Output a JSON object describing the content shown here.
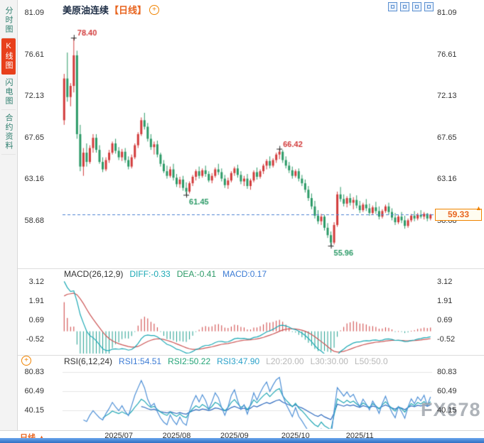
{
  "sidebar": {
    "items": [
      {
        "label": "分时图",
        "active": false
      },
      {
        "label": "K线图",
        "active": true
      },
      {
        "label": "闪电图",
        "active": false
      },
      {
        "label": "合约资料",
        "active": false
      }
    ]
  },
  "header": {
    "title": "美原油连续",
    "period_tag": "【日线】"
  },
  "icons": {
    "plus_glyph": "+",
    "up_arrow_glyph": "▲"
  },
  "toolbar": {
    "icons": [
      "crosshair-tool-icon",
      "draw-tool-icon",
      "indicator-tool-icon",
      "popout-tool-icon"
    ]
  },
  "main_chart": {
    "current_price_label": "59.33"
  },
  "macd_panel": {
    "label": "MACD(26,12,9)",
    "diff": "DIFF:-0.33",
    "dea": "DEA:-0.41",
    "macd": "MACD:0.17"
  },
  "rsi_panel": {
    "label": "RSI(6,12,24)",
    "rsi1": "RSI1:54.51",
    "rsi2": "RSI2:50.22",
    "rsi3": "RSI3:47.90",
    "l20": "L20:20.00",
    "l30": "L30:30.00",
    "l50": "L50:50.0"
  },
  "x_axis": {
    "period_label": "日线"
  },
  "watermark": {
    "text": "FX678"
  },
  "colors": {
    "up": "#d23b3b",
    "down": "#2c9a67",
    "accent": "#e8641e",
    "price_line": "#4a7fd0",
    "diff_line": "#1ba8b4",
    "dea_line": "#cc5555",
    "rsi1": "#4d8fd6",
    "rsi2": "#22a7b5",
    "rsi3": "#2f6bbf"
  },
  "chart_data": {
    "type": "candlestick",
    "title": "美原油连续【日线】",
    "period": "日线",
    "y_ticks": [
      81.09,
      76.61,
      72.13,
      67.65,
      63.16,
      58.68
    ],
    "current_price": 59.33,
    "annotations": [
      {
        "index": 3,
        "price": 78.4,
        "label": "78.40",
        "kind": "high"
      },
      {
        "index": 67,
        "price": 66.42,
        "label": "66.42",
        "kind": "high"
      },
      {
        "index": 38,
        "price": 61.45,
        "label": "61.45",
        "kind": "low"
      },
      {
        "index": 83,
        "price": 55.96,
        "label": "55.96",
        "kind": "low"
      }
    ],
    "x_ticks": [
      {
        "index": 17,
        "label": "2025/07"
      },
      {
        "index": 35,
        "label": "2025/08"
      },
      {
        "index": 53,
        "label": "2025/09"
      },
      {
        "index": 72,
        "label": "2025/10"
      },
      {
        "index": 92,
        "label": "2025/11"
      }
    ],
    "macd": {
      "params": [
        26,
        12,
        9
      ],
      "diff": -0.33,
      "dea": -0.41,
      "macd": 0.17,
      "y_ticks": [
        3.12,
        1.91,
        0.69,
        -0.52
      ]
    },
    "rsi": {
      "params": [
        6,
        12,
        24
      ],
      "rsi1": 54.51,
      "rsi2": 50.22,
      "rsi3": 47.9,
      "levels": [
        20.0,
        30.0,
        50.0
      ],
      "y_ticks": [
        80.83,
        60.49,
        40.15
      ]
    },
    "candles": [
      [
        69.5,
        74.5,
        69.0,
        74.0
      ],
      [
        74.0,
        76.8,
        71.5,
        72.0
      ],
      [
        72.0,
        73.5,
        71.0,
        73.2
      ],
      [
        73.2,
        78.4,
        72.5,
        76.5
      ],
      [
        76.5,
        77.0,
        67.5,
        68.0
      ],
      [
        68.0,
        69.0,
        64.0,
        64.5
      ],
      [
        64.5,
        66.5,
        63.5,
        66.0
      ],
      [
        66.0,
        67.0,
        64.5,
        65.0
      ],
      [
        65.0,
        66.8,
        64.8,
        66.5
      ],
      [
        66.5,
        68.0,
        66.0,
        67.6
      ],
      [
        67.6,
        68.0,
        66.0,
        66.3
      ],
      [
        66.3,
        66.8,
        64.8,
        65.0
      ],
      [
        65.0,
        65.5,
        63.9,
        64.2
      ],
      [
        64.2,
        65.5,
        64.0,
        65.2
      ],
      [
        65.2,
        66.3,
        64.9,
        66.0
      ],
      [
        66.0,
        67.2,
        65.8,
        67.0
      ],
      [
        67.0,
        67.5,
        65.9,
        66.2
      ],
      [
        66.2,
        66.6,
        65.2,
        65.5
      ],
      [
        65.5,
        66.4,
        65.1,
        66.1
      ],
      [
        66.1,
        66.5,
        64.9,
        65.2
      ],
      [
        65.2,
        65.6,
        64.2,
        64.5
      ],
      [
        64.5,
        65.8,
        64.3,
        65.5
      ],
      [
        65.5,
        67.0,
        65.3,
        66.8
      ],
      [
        66.8,
        68.2,
        66.5,
        68.0
      ],
      [
        68.0,
        69.8,
        67.8,
        69.5
      ],
      [
        69.5,
        70.3,
        68.5,
        68.8
      ],
      [
        68.8,
        69.2,
        67.2,
        67.5
      ],
      [
        67.5,
        68.0,
        66.3,
        66.6
      ],
      [
        66.6,
        67.2,
        65.8,
        66.9
      ],
      [
        66.9,
        67.3,
        65.5,
        65.8
      ],
      [
        65.8,
        66.0,
        64.5,
        64.8
      ],
      [
        64.8,
        65.2,
        63.8,
        64.0
      ],
      [
        64.0,
        64.6,
        63.2,
        63.5
      ],
      [
        63.5,
        64.5,
        63.3,
        64.2
      ],
      [
        64.2,
        64.8,
        63.0,
        63.3
      ],
      [
        63.3,
        63.7,
        62.3,
        62.6
      ],
      [
        62.6,
        63.4,
        62.2,
        63.1
      ],
      [
        63.1,
        63.5,
        61.9,
        62.2
      ],
      [
        62.2,
        62.8,
        61.45,
        61.8
      ],
      [
        61.8,
        62.9,
        61.6,
        62.7
      ],
      [
        62.7,
        63.6,
        62.4,
        63.4
      ],
      [
        63.4,
        64.2,
        63.0,
        64.0
      ],
      [
        64.0,
        64.5,
        63.2,
        63.5
      ],
      [
        63.5,
        64.3,
        63.3,
        64.1
      ],
      [
        64.1,
        64.6,
        63.4,
        63.7
      ],
      [
        63.7,
        64.0,
        62.8,
        63.0
      ],
      [
        63.0,
        63.8,
        62.7,
        63.5
      ],
      [
        63.5,
        64.4,
        63.3,
        64.2
      ],
      [
        64.2,
        64.8,
        63.6,
        63.9
      ],
      [
        63.9,
        64.3,
        62.9,
        63.2
      ],
      [
        63.2,
        63.6,
        62.2,
        62.5
      ],
      [
        62.5,
        63.3,
        62.1,
        63.0
      ],
      [
        63.0,
        64.0,
        62.8,
        63.8
      ],
      [
        63.8,
        64.5,
        63.5,
        64.3
      ],
      [
        64.3,
        64.7,
        63.3,
        63.6
      ],
      [
        63.6,
        64.0,
        62.6,
        62.9
      ],
      [
        62.9,
        63.5,
        62.4,
        63.2
      ],
      [
        63.2,
        63.7,
        62.1,
        62.4
      ],
      [
        62.4,
        63.2,
        62.0,
        63.0
      ],
      [
        63.0,
        64.1,
        62.8,
        63.9
      ],
      [
        63.9,
        64.4,
        63.1,
        63.4
      ],
      [
        63.4,
        64.2,
        63.2,
        64.0
      ],
      [
        64.0,
        64.8,
        63.7,
        64.6
      ],
      [
        64.6,
        65.3,
        64.2,
        65.1
      ],
      [
        65.1,
        65.6,
        64.3,
        64.6
      ],
      [
        64.6,
        65.4,
        64.4,
        65.2
      ],
      [
        65.2,
        66.0,
        64.9,
        65.8
      ],
      [
        65.8,
        66.42,
        65.3,
        66.1
      ],
      [
        66.1,
        66.3,
        64.9,
        65.2
      ],
      [
        65.2,
        65.6,
        64.3,
        64.6
      ],
      [
        64.6,
        65.0,
        63.8,
        64.1
      ],
      [
        64.1,
        64.5,
        63.2,
        63.5
      ],
      [
        63.5,
        64.2,
        63.3,
        64.0
      ],
      [
        64.0,
        64.3,
        62.9,
        63.2
      ],
      [
        63.2,
        63.6,
        62.4,
        62.7
      ],
      [
        62.7,
        63.1,
        61.7,
        62.0
      ],
      [
        62.0,
        62.4,
        60.8,
        61.1
      ],
      [
        61.1,
        61.6,
        59.9,
        60.2
      ],
      [
        60.2,
        60.8,
        58.9,
        59.2
      ],
      [
        59.2,
        59.8,
        58.3,
        58.6
      ],
      [
        58.6,
        59.4,
        58.2,
        59.1
      ],
      [
        59.1,
        59.3,
        57.6,
        57.9
      ],
      [
        57.9,
        58.4,
        56.8,
        57.1
      ],
      [
        57.1,
        57.5,
        55.96,
        56.3
      ],
      [
        56.3,
        58.5,
        56.1,
        58.2
      ],
      [
        58.2,
        61.8,
        58.0,
        61.5
      ],
      [
        61.5,
        62.3,
        60.7,
        61.0
      ],
      [
        61.0,
        61.5,
        60.2,
        60.5
      ],
      [
        60.5,
        61.3,
        60.1,
        61.1
      ],
      [
        61.1,
        61.6,
        60.3,
        60.6
      ],
      [
        60.6,
        61.2,
        59.9,
        60.9
      ],
      [
        60.9,
        61.4,
        60.0,
        60.3
      ],
      [
        60.3,
        60.8,
        59.5,
        59.8
      ],
      [
        59.8,
        60.6,
        59.6,
        60.4
      ],
      [
        60.4,
        61.0,
        59.7,
        60.0
      ],
      [
        60.0,
        60.5,
        59.2,
        59.5
      ],
      [
        59.5,
        60.3,
        59.3,
        60.1
      ],
      [
        60.1,
        60.7,
        59.4,
        59.7
      ],
      [
        59.7,
        60.2,
        58.8,
        59.1
      ],
      [
        59.1,
        59.9,
        58.9,
        59.7
      ],
      [
        59.7,
        60.4,
        59.5,
        60.2
      ],
      [
        60.2,
        60.6,
        59.3,
        59.6
      ],
      [
        59.6,
        60.0,
        58.7,
        59.0
      ],
      [
        59.0,
        59.5,
        58.2,
        58.5
      ],
      [
        58.5,
        59.3,
        58.3,
        59.1
      ],
      [
        59.1,
        59.6,
        58.4,
        58.7
      ],
      [
        58.7,
        59.2,
        57.8,
        58.1
      ],
      [
        58.1,
        58.9,
        57.9,
        58.7
      ],
      [
        58.7,
        59.4,
        58.5,
        59.2
      ],
      [
        59.2,
        59.7,
        58.6,
        58.9
      ],
      [
        58.9,
        59.5,
        58.7,
        59.3
      ],
      [
        59.3,
        59.8,
        58.9,
        59.1
      ],
      [
        59.1,
        59.6,
        58.8,
        59.4
      ],
      [
        59.4,
        59.5,
        58.6,
        58.9
      ],
      [
        58.9,
        59.4,
        58.7,
        59.33
      ]
    ]
  }
}
